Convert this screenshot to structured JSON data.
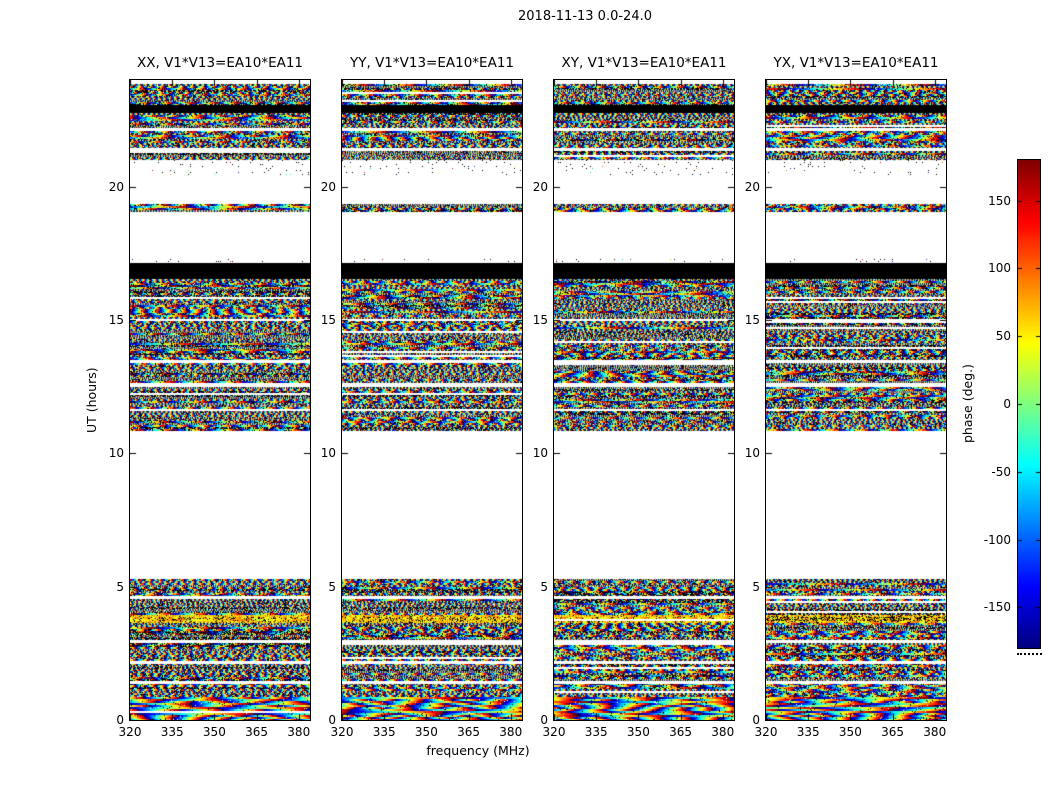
{
  "chart_data": {
    "type": "heatmap",
    "title": "2018-11-13 0.0-24.0",
    "panels": [
      "XX, V1*V13=EA10*EA11",
      "YY, V1*V13=EA10*EA11",
      "XY, V1*V13=EA10*EA11",
      "YX, V1*V13=EA10*EA11"
    ],
    "xlabel": "frequency (MHz)",
    "ylabel": "UT (hours)",
    "x_ticks": [
      320,
      335,
      350,
      365,
      380
    ],
    "x_range_mhz": [
      320,
      384
    ],
    "y_ticks": [
      0,
      5,
      10,
      15,
      20
    ],
    "y_range_hours": [
      0,
      24
    ],
    "value_label": "phase (deg.)",
    "value_range_deg": [
      -180,
      180
    ],
    "colorbar_ticks": [
      150,
      100,
      50,
      0,
      -50,
      -100,
      -150
    ],
    "colormap": "jet",
    "grid": false,
    "legend": "colorbar-right",
    "bands": [
      {
        "ut": [
          23.05,
          23.85
        ],
        "kind": "noise"
      },
      {
        "ut": [
          22.75,
          23.05
        ],
        "kind": "black"
      },
      {
        "ut": [
          21.0,
          22.75
        ],
        "kind": "noise"
      },
      {
        "ut": [
          20.45,
          21.0
        ],
        "kind": "sparse"
      },
      {
        "ut": [
          19.05,
          19.35
        ],
        "kind": "noise"
      },
      {
        "ut": [
          17.15,
          17.3
        ],
        "kind": "sparse"
      },
      {
        "ut": [
          16.55,
          17.15
        ],
        "kind": "black"
      },
      {
        "ut": [
          10.85,
          16.55
        ],
        "kind": "noise"
      },
      {
        "ut": [
          0.0,
          5.3
        ],
        "kind": "noise"
      }
    ],
    "gaps_ut": [
      [
        22.1,
        22.2
      ],
      [
        21.35,
        21.45
      ],
      [
        14.95,
        15.05
      ],
      [
        13.4,
        13.5
      ],
      [
        12.5,
        12.62
      ],
      [
        11.6,
        11.68
      ],
      [
        4.55,
        4.65
      ],
      [
        2.9,
        3.0
      ],
      [
        2.1,
        2.2
      ],
      [
        1.35,
        1.45
      ]
    ],
    "warm_band_ut": [
      3.68,
      4.0
    ],
    "fringe_band_ut": [
      0.0,
      0.9
    ]
  }
}
